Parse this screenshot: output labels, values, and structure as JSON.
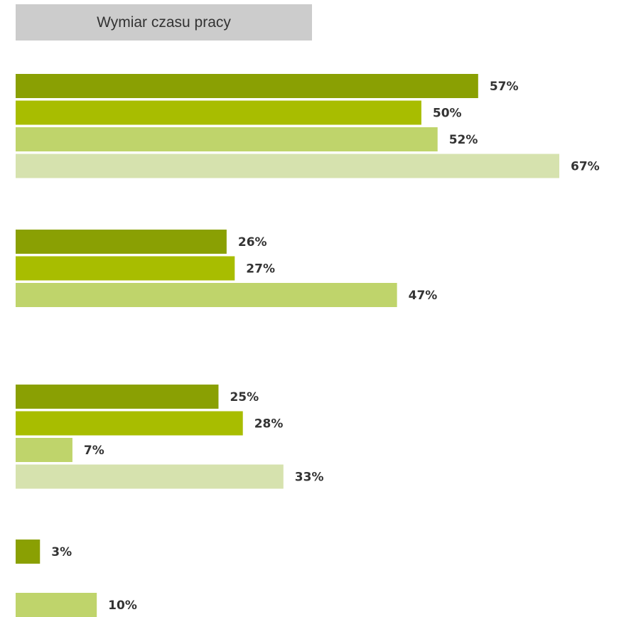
{
  "title": "Wymiar czasu pracy",
  "colors": [
    "#8aa003",
    "#a8bd00",
    "#bfd46b",
    "#d6e2ae"
  ],
  "chart_data": {
    "type": "bar",
    "orientation": "horizontal",
    "title": "Wymiar czasu pracy",
    "xlim": [
      0,
      67
    ],
    "unit": "%",
    "groups": [
      {
        "values": [
          57,
          50,
          52,
          67
        ],
        "series_index": [
          0,
          1,
          2,
          3
        ]
      },
      {
        "values": [
          26,
          27,
          47
        ],
        "series_index": [
          0,
          1,
          2
        ]
      },
      {
        "values": [
          25,
          28,
          7,
          33
        ],
        "series_index": [
          0,
          1,
          2,
          3
        ]
      },
      {
        "values": [
          3
        ],
        "series_index": [
          0
        ]
      },
      {
        "values": [
          10
        ],
        "series_index": [
          2
        ]
      }
    ]
  }
}
